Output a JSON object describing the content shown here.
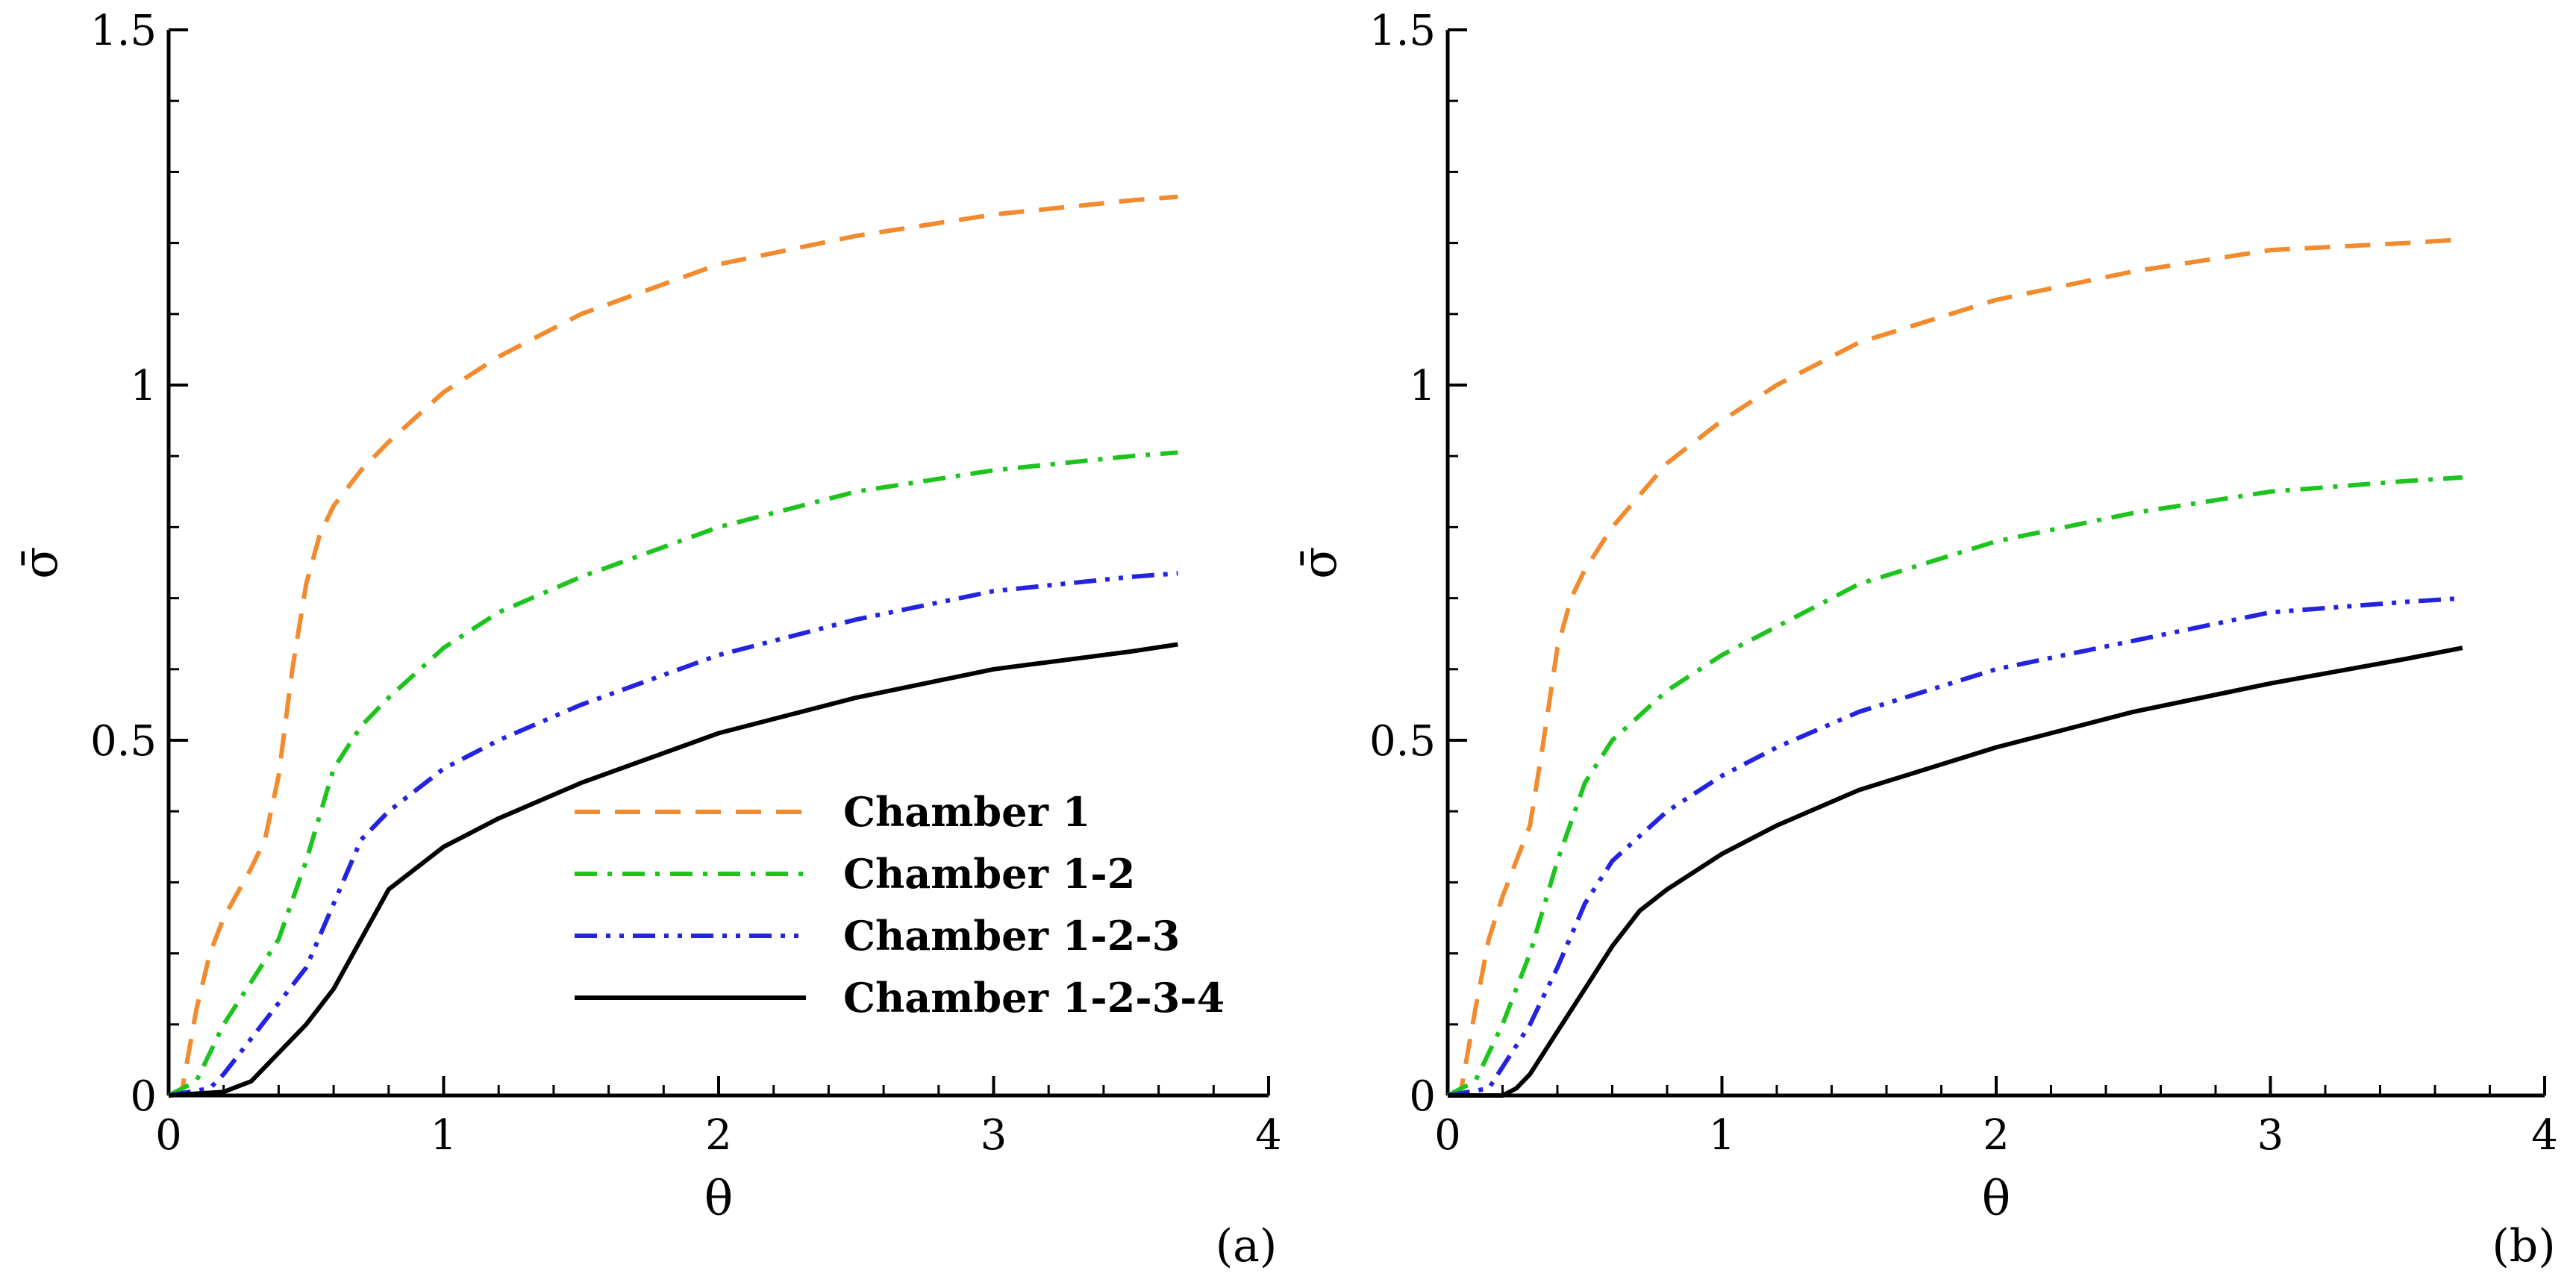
{
  "chart_data": [
    {
      "type": "line",
      "panel_label": "(a)",
      "xlabel": "θ",
      "ylabel": "σ̄",
      "xlim": [
        0,
        4
      ],
      "ylim": [
        0,
        1.5
      ],
      "xticks": [
        0,
        1,
        2,
        3,
        4
      ],
      "yticks": [
        0,
        0.5,
        1,
        1.5
      ],
      "xtick_labels": [
        "0",
        "1",
        "2",
        "3",
        "4"
      ],
      "ytick_labels": [
        "0",
        "0.5",
        "1",
        "1.5"
      ],
      "legend": {
        "position": "lower-right"
      },
      "series": [
        {
          "name": "Chamber 1",
          "color": "#f28a2e",
          "dash": "dashed",
          "x": [
            0,
            0.05,
            0.1,
            0.15,
            0.2,
            0.3,
            0.35,
            0.4,
            0.45,
            0.5,
            0.55,
            0.6,
            0.7,
            0.8,
            1.0,
            1.2,
            1.5,
            2.0,
            2.5,
            3.0,
            3.5,
            3.67
          ],
          "y": [
            0,
            0.01,
            0.12,
            0.2,
            0.25,
            0.32,
            0.36,
            0.45,
            0.6,
            0.72,
            0.79,
            0.83,
            0.88,
            0.92,
            0.99,
            1.04,
            1.1,
            1.17,
            1.21,
            1.24,
            1.26,
            1.265
          ]
        },
        {
          "name": "Chamber 1-2",
          "color": "#1ec41e",
          "dash": "dashdot",
          "x": [
            0,
            0.1,
            0.15,
            0.2,
            0.3,
            0.4,
            0.5,
            0.6,
            0.7,
            0.8,
            1.0,
            1.2,
            1.5,
            2.0,
            2.5,
            3.0,
            3.5,
            3.67
          ],
          "y": [
            0,
            0.02,
            0.06,
            0.1,
            0.16,
            0.22,
            0.33,
            0.46,
            0.52,
            0.56,
            0.63,
            0.68,
            0.73,
            0.8,
            0.85,
            0.88,
            0.9,
            0.905
          ]
        },
        {
          "name": "Chamber 1-2-3",
          "color": "#2323e0",
          "dash": "dashdotdot",
          "x": [
            0,
            0.15,
            0.2,
            0.3,
            0.4,
            0.5,
            0.6,
            0.7,
            0.8,
            1.0,
            1.2,
            1.5,
            2.0,
            2.5,
            3.0,
            3.5,
            3.67
          ],
          "y": [
            0,
            0.01,
            0.03,
            0.08,
            0.13,
            0.18,
            0.27,
            0.36,
            0.4,
            0.46,
            0.5,
            0.55,
            0.62,
            0.67,
            0.71,
            0.73,
            0.735
          ]
        },
        {
          "name": "Chamber 1-2-3-4",
          "color": "#000000",
          "dash": "solid",
          "x": [
            0,
            0.2,
            0.3,
            0.4,
            0.5,
            0.6,
            0.7,
            0.8,
            1.0,
            1.2,
            1.5,
            2.0,
            2.5,
            3.0,
            3.5,
            3.67
          ],
          "y": [
            0,
            0.005,
            0.02,
            0.06,
            0.1,
            0.15,
            0.22,
            0.29,
            0.35,
            0.39,
            0.44,
            0.51,
            0.56,
            0.6,
            0.625,
            0.635
          ]
        }
      ]
    },
    {
      "type": "line",
      "panel_label": "(b)",
      "xlabel": "θ",
      "ylabel": "σ̄",
      "xlim": [
        0,
        4
      ],
      "ylim": [
        0,
        1.5
      ],
      "xticks": [
        0,
        1,
        2,
        3,
        4
      ],
      "yticks": [
        0,
        0.5,
        1,
        1.5
      ],
      "xtick_labels": [
        "0",
        "1",
        "2",
        "3",
        "4"
      ],
      "ytick_labels": [
        "0",
        "0.5",
        "1",
        "1.5"
      ],
      "series": [
        {
          "name": "Chamber 1",
          "color": "#f28a2e",
          "dash": "dashed",
          "x": [
            0,
            0.05,
            0.1,
            0.15,
            0.2,
            0.25,
            0.3,
            0.35,
            0.4,
            0.45,
            0.5,
            0.6,
            0.8,
            1.0,
            1.2,
            1.5,
            2.0,
            2.5,
            3.0,
            3.5,
            3.7
          ],
          "y": [
            0,
            0.01,
            0.12,
            0.22,
            0.28,
            0.33,
            0.38,
            0.5,
            0.63,
            0.7,
            0.74,
            0.8,
            0.89,
            0.95,
            1.0,
            1.06,
            1.12,
            1.16,
            1.19,
            1.2,
            1.205
          ]
        },
        {
          "name": "Chamber 1-2",
          "color": "#1ec41e",
          "dash": "dashdot",
          "x": [
            0,
            0.1,
            0.15,
            0.2,
            0.3,
            0.4,
            0.5,
            0.6,
            0.8,
            1.0,
            1.2,
            1.5,
            2.0,
            2.5,
            3.0,
            3.5,
            3.7
          ],
          "y": [
            0,
            0.02,
            0.06,
            0.1,
            0.2,
            0.33,
            0.44,
            0.5,
            0.57,
            0.62,
            0.66,
            0.72,
            0.78,
            0.82,
            0.85,
            0.865,
            0.87
          ]
        },
        {
          "name": "Chamber 1-2-3",
          "color": "#2323e0",
          "dash": "dashdotdot",
          "x": [
            0,
            0.15,
            0.2,
            0.3,
            0.4,
            0.5,
            0.6,
            0.8,
            1.0,
            1.2,
            1.5,
            2.0,
            2.5,
            3.0,
            3.5,
            3.7
          ],
          "y": [
            0,
            0.01,
            0.04,
            0.1,
            0.18,
            0.27,
            0.33,
            0.4,
            0.45,
            0.49,
            0.54,
            0.6,
            0.64,
            0.68,
            0.695,
            0.7
          ]
        },
        {
          "name": "Chamber 1-2-3-4",
          "color": "#000000",
          "dash": "solid",
          "x": [
            0,
            0.2,
            0.25,
            0.3,
            0.4,
            0.5,
            0.6,
            0.7,
            0.8,
            1.0,
            1.2,
            1.5,
            2.0,
            2.5,
            3.0,
            3.5,
            3.7
          ],
          "y": [
            0,
            0.0,
            0.01,
            0.03,
            0.09,
            0.15,
            0.21,
            0.26,
            0.29,
            0.34,
            0.38,
            0.43,
            0.49,
            0.54,
            0.58,
            0.615,
            0.63
          ]
        }
      ]
    }
  ]
}
